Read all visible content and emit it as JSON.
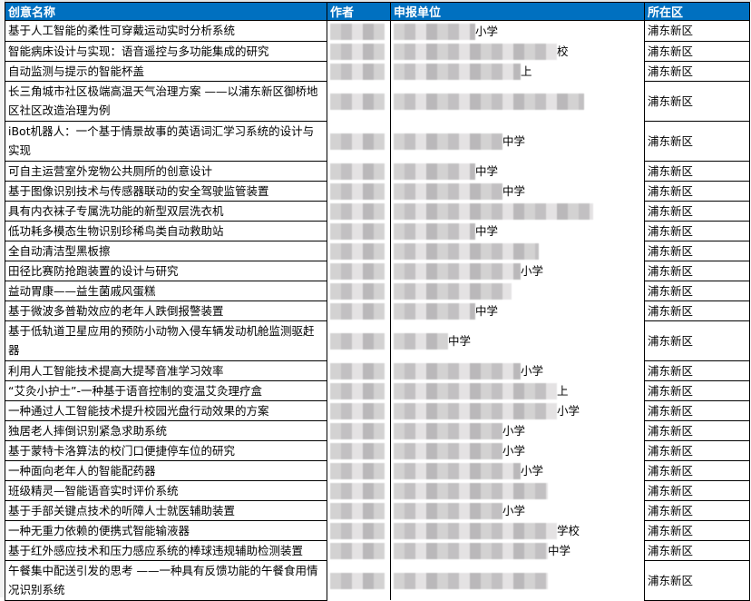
{
  "table": {
    "headers": [
      "创意名称",
      "作者",
      "申报单位",
      "所在区"
    ],
    "rows": [
      {
        "name": "基于人工智能的柔性可穿戴运动实时分析系统",
        "unit": "小学",
        "district": "浦东新区"
      },
      {
        "name": "智能病床设计与实现：语音遥控与多功能集成的研究",
        "unit": "校",
        "district": "浦东新区"
      },
      {
        "name": "自动监测与提示的智能杯盖",
        "unit": "上",
        "district": "浦东新区"
      },
      {
        "name": "长三角城市社区极端高温天气治理方案 ——以浦东新区御桥地区社区改造治理为例",
        "unit": "",
        "district": "浦东新区"
      },
      {
        "name": "iBot机器人：一个基于情景故事的英语词汇学习系统的设计与实现",
        "unit": "中学",
        "district": "浦东新区"
      },
      {
        "name": "可自主运营室外宠物公共厕所的创意设计",
        "unit": "中学",
        "district": "浦东新区"
      },
      {
        "name": "基于图像识别技术与传感器联动的安全驾驶监管装置",
        "unit": "中学",
        "district": "浦东新区"
      },
      {
        "name": "具有内衣袜子专属洗功能的新型双层洗衣机",
        "unit": "",
        "district": "浦东新区"
      },
      {
        "name": "低功耗多模态生物识别珍稀鸟类自动救助站",
        "unit": "中学",
        "district": "浦东新区"
      },
      {
        "name": "全自动清洁型黑板擦",
        "unit": "",
        "district": "浦东新区"
      },
      {
        "name": "田径比赛防抢跑装置的设计与研究",
        "unit": "小学",
        "district": "浦东新区"
      },
      {
        "name": "益动胃康——益生菌戚风蛋糕",
        "unit": "",
        "district": "浦东新区"
      },
      {
        "name": "基于微波多普勒效应的老年人跌倒报警装置",
        "unit": "中学",
        "district": "浦东新区"
      },
      {
        "name": "基于低轨道卫星应用的预防小动物入侵车辆发动机舱监测驱赶器",
        "unit": "中学",
        "district": "浦东新区"
      },
      {
        "name": "利用人工智能技术提高大提琴音准学习效率",
        "unit": "小学",
        "district": "浦东新区"
      },
      {
        "name": "“艾灸小护士”-一种基于语音控制的变温艾灸理疗盒",
        "unit": "上",
        "district": "浦东新区"
      },
      {
        "name": "一种通过人工智能技术提升校园光盘行动效果的方案",
        "unit": "小学",
        "district": "浦东新区"
      },
      {
        "name": "独居老人摔倒识别紧急求助系统",
        "unit": "小学",
        "district": "浦东新区"
      },
      {
        "name": "基于蒙特卡洛算法的校门口便捷停车位的研究",
        "unit": "小学",
        "district": "浦东新区"
      },
      {
        "name": "一种面向老年人的智能配药器",
        "unit": "小学",
        "district": "浦东新区"
      },
      {
        "name": "班级精灵—智能语音实时评价系统",
        "unit": "",
        "district": "浦东新区"
      },
      {
        "name": "基于手部关键点技术的听障人士就医辅助装置",
        "unit": "小学",
        "district": "浦东新区"
      },
      {
        "name": "一种无重力依赖的便携式智能输液器",
        "unit": "学校",
        "district": "浦东新区"
      },
      {
        "name": "基于红外感应技术和压力感应系统的棒球违规辅助检测装置",
        "unit": "中学",
        "district": "浦东新区"
      },
      {
        "name": "午餐集中配送引发的思考 ——一种具有反馈功能的午餐食用情况识别系统",
        "unit": "",
        "district": "浦东新区"
      }
    ]
  },
  "colors": {
    "header_bg": "#0070C0",
    "header_text": "#FFFFFF"
  }
}
